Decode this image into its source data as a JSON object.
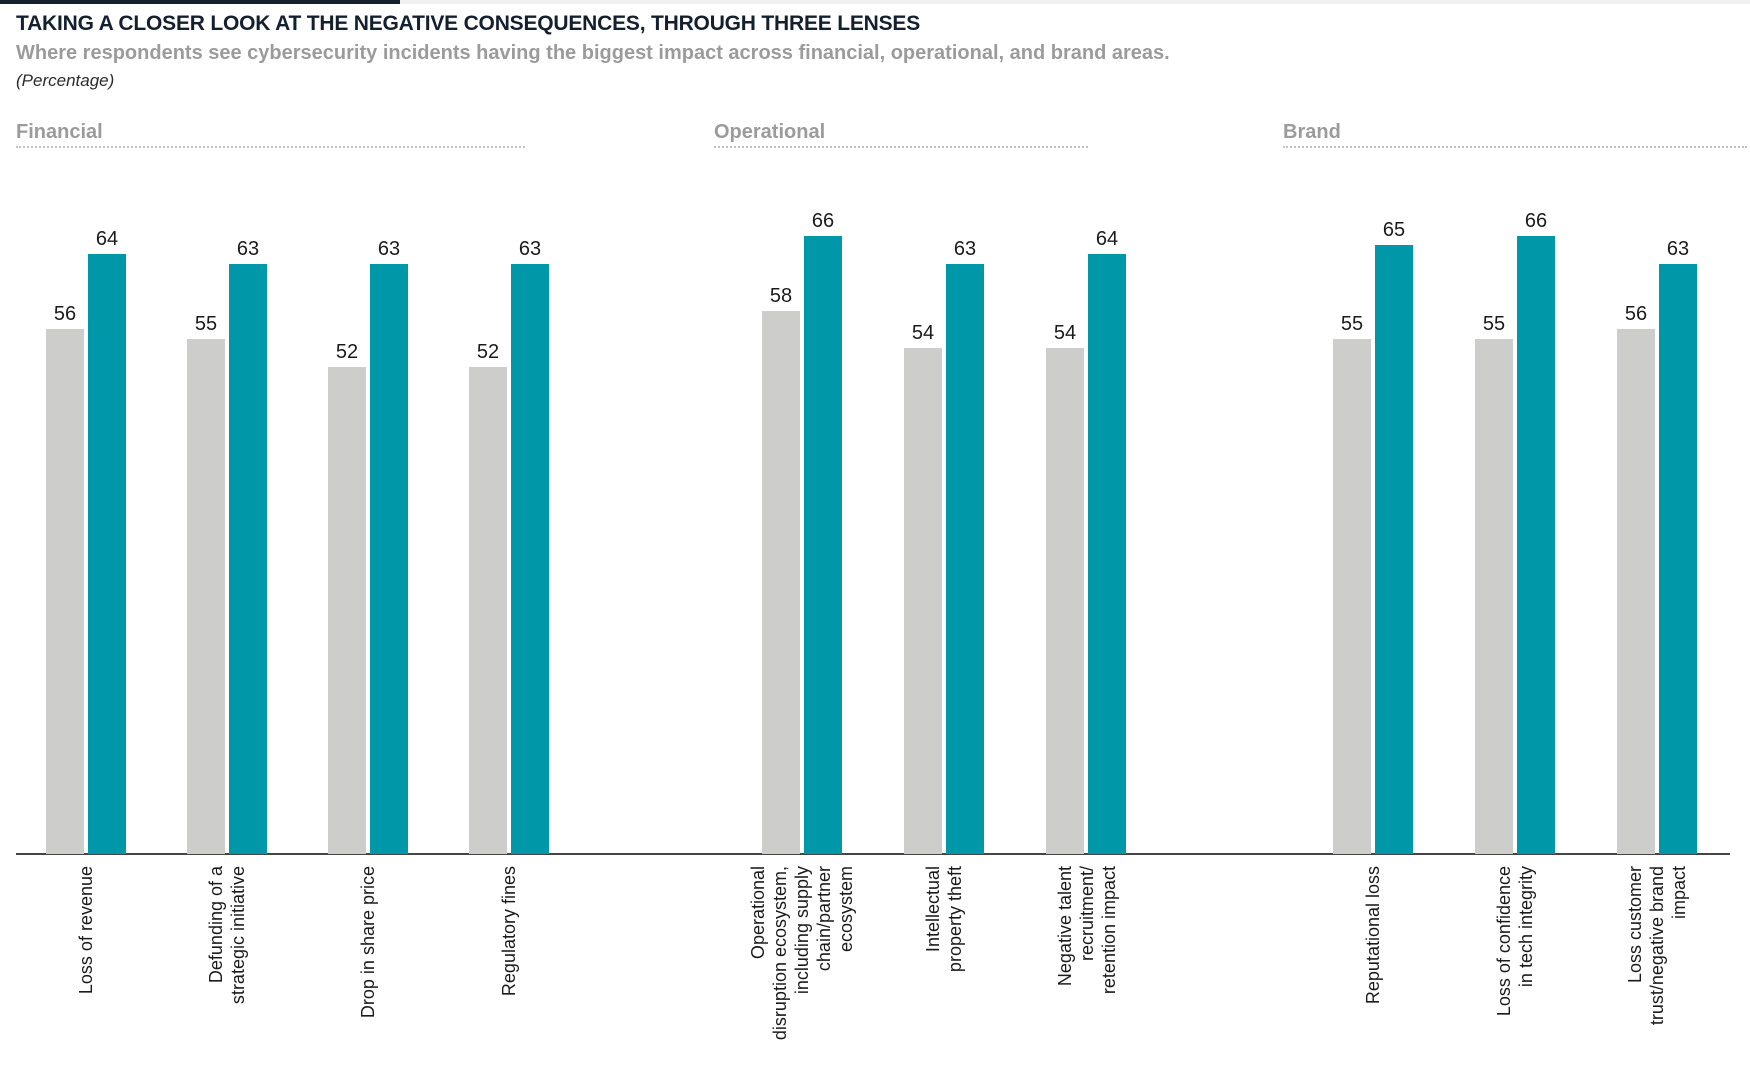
{
  "header": {
    "title": "TAKING A CLOSER LOOK AT THE NEGATIVE CONSEQUENCES, THROUGH THREE LENSES",
    "subtitle": "Where respondents see cybersecurity incidents having the biggest impact across financial, operational, and brand areas.",
    "unit_note": "(Percentage)"
  },
  "chart_data": {
    "type": "bar",
    "unit": "percent",
    "legend_visible": false,
    "series": [
      {
        "role": "series1",
        "color": "#cdcdcc"
      },
      {
        "role": "series2",
        "color": "#0097a9"
      }
    ],
    "ylim": [
      0,
      70
    ],
    "gridlines": false,
    "sections": [
      {
        "label": "Financial",
        "groups": [
          {
            "category": "Loss of revenue",
            "label_lines": [
              "Loss of revenue"
            ],
            "values": [
              56,
              64
            ]
          },
          {
            "category": "Defunding of a strategic initiative",
            "label_lines": [
              "Defunding of a",
              "strategic initiative"
            ],
            "values": [
              55,
              63
            ]
          },
          {
            "category": "Drop in share price",
            "label_lines": [
              "Drop in share price"
            ],
            "values": [
              52,
              63
            ]
          },
          {
            "category": "Regulatory fines",
            "label_lines": [
              "Regulatory fines"
            ],
            "values": [
              52,
              63
            ]
          }
        ]
      },
      {
        "label": "Operational",
        "groups": [
          {
            "category": "Operational disruption ecosystem, including supply chain/partner ecosystem",
            "label_lines": [
              "Operational",
              "disruption ecosystem,",
              "including supply",
              "chain/partner",
              "ecosystem"
            ],
            "values": [
              58,
              66
            ]
          },
          {
            "category": "Intellectual property theft",
            "label_lines": [
              "Intellectual",
              "property theft"
            ],
            "values": [
              54,
              63
            ]
          },
          {
            "category": "Negative talent recruitment/ retention impact",
            "label_lines": [
              "Negative talent",
              "recruitment/",
              "retention impact"
            ],
            "values": [
              54,
              64
            ]
          }
        ]
      },
      {
        "label": "Brand",
        "groups": [
          {
            "category": "Reputational loss",
            "label_lines": [
              "Reputational loss"
            ],
            "values": [
              55,
              65
            ]
          },
          {
            "category": "Loss of confidence in tech integrity",
            "label_lines": [
              "Loss of confidence",
              "in tech integrity"
            ],
            "values": [
              55,
              66
            ]
          },
          {
            "category": "Loss customer trust/negative brand impact",
            "label_lines": [
              "Loss customer",
              "trust/negative brand",
              "impact"
            ],
            "values": [
              56,
              63
            ]
          }
        ]
      }
    ]
  }
}
